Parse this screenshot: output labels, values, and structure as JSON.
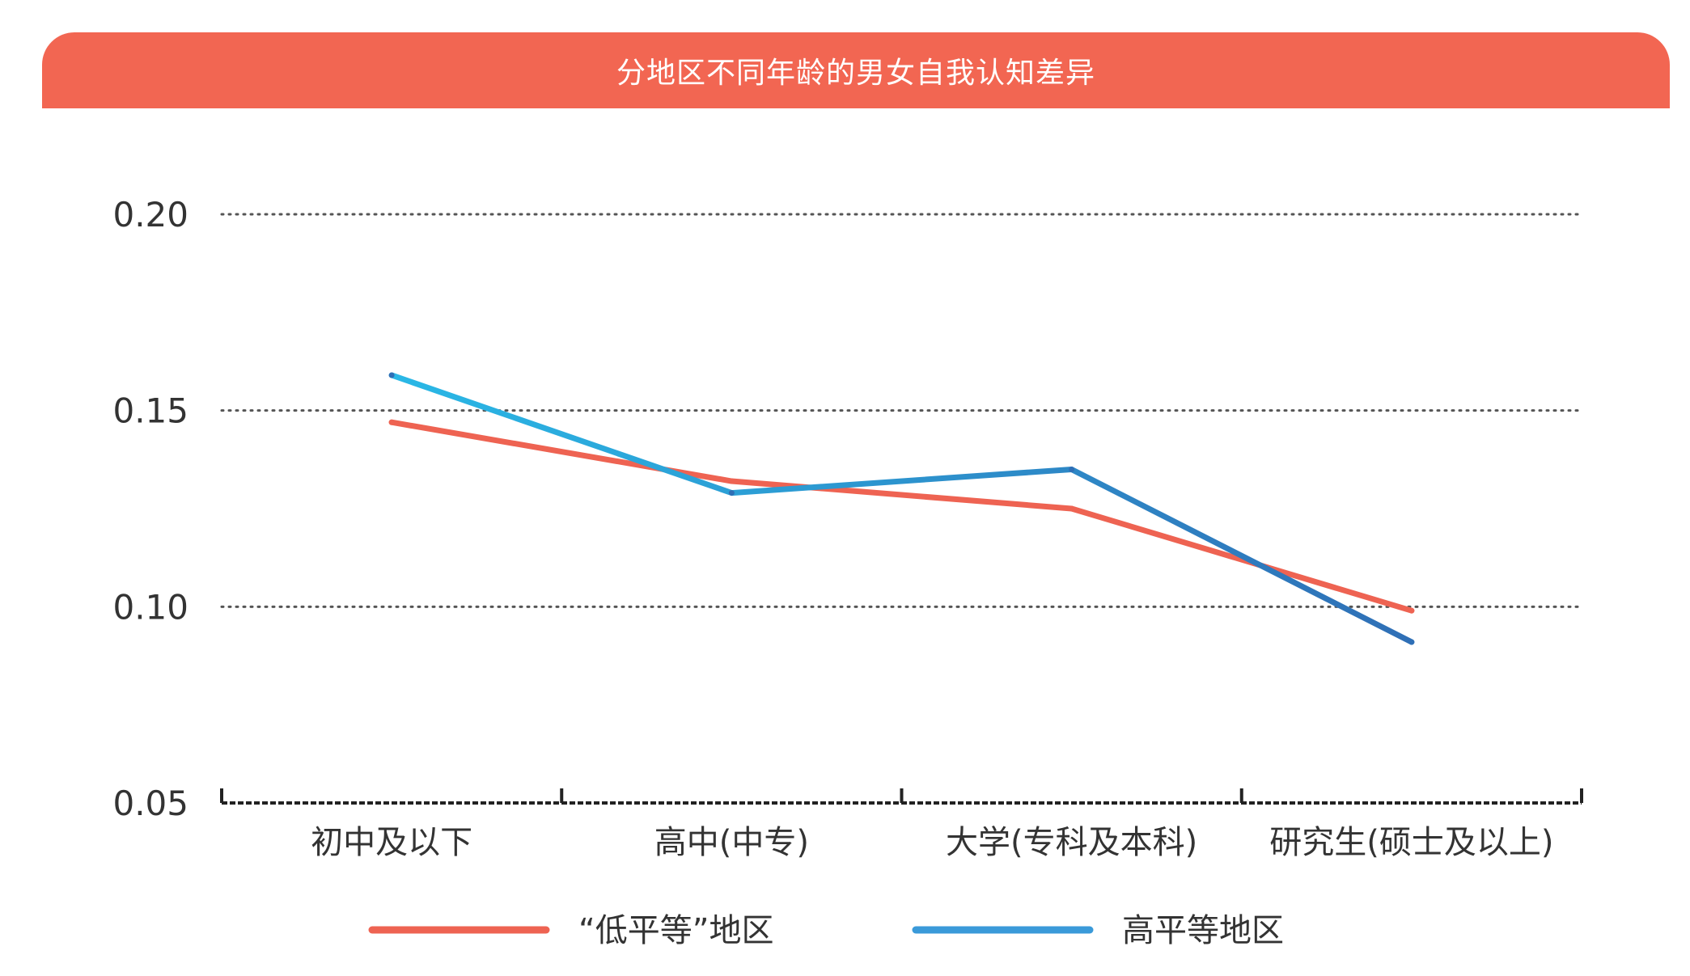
{
  "chart_data": {
    "type": "line",
    "title": "分地区不同年龄的男女自我认知差异",
    "xlabel": "",
    "ylabel": "",
    "categories": [
      "初中及以下",
      "高中(中专)",
      "大学(专科及本科)",
      "研究生(硕士及以上)"
    ],
    "ylim": [
      0.05,
      0.2
    ],
    "yticks": [
      0.05,
      0.1,
      0.15,
      0.2
    ],
    "ytick_labels": [
      "0.05",
      "0.10",
      "0.15",
      "0.20"
    ],
    "grid": true,
    "legend_position": "bottom",
    "series": [
      {
        "name": "“低平等”地区",
        "values": [
          0.147,
          0.132,
          0.125,
          0.099
        ],
        "color": "#ee6352"
      },
      {
        "name": "高平等地区",
        "values": [
          0.159,
          0.129,
          0.135,
          0.091
        ],
        "color": "#3a9ad9"
      }
    ]
  },
  "colors": {
    "title_bar": "#f26652",
    "gridline": "#555555",
    "axis": "#222222",
    "high_gradient_start": "#2ab8e6",
    "high_gradient_end": "#2f6fb6"
  }
}
